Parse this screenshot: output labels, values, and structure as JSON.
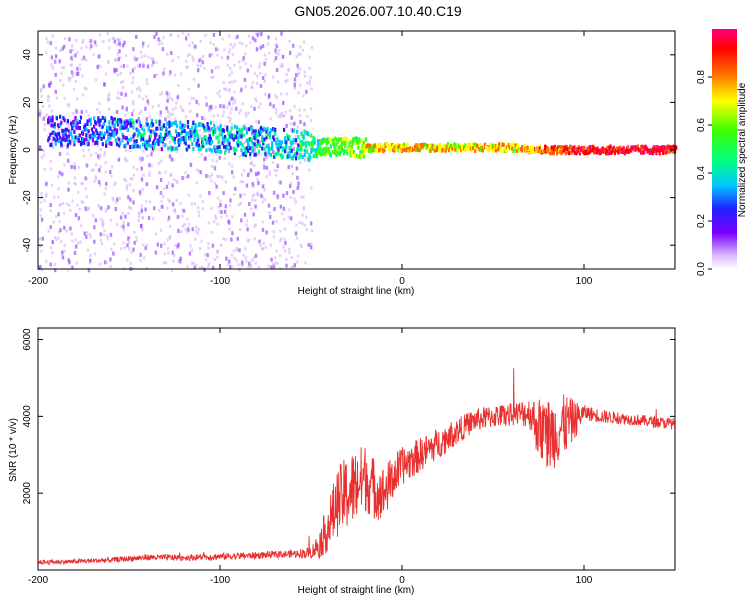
{
  "title": "GN05.2026.007.10.40.C19",
  "colors": {
    "snr_line": "#e8312f",
    "ridge_weak": "#7b00ff",
    "ridge_mid": "#00e0ff",
    "ridge_strong": "#ff1a1a",
    "scatter_light": "#c9a6f5"
  },
  "colorbar": {
    "label": "Normalized spectral amplitude",
    "ticks": [
      "0.0",
      "0.2",
      "0.4",
      "0.6",
      "0.8"
    ],
    "range": [
      0.0,
      1.0
    ],
    "colormap": "rainbow (purple → blue → cyan → green → yellow → red → magenta)"
  },
  "chart_data": [
    {
      "type": "heatmap",
      "xlabel": "Height of straight line (km)",
      "ylabel": "Frequency (Hz)",
      "xlim": [
        -200,
        150
      ],
      "ylim": [
        -50,
        50
      ],
      "xticks": [
        "-200",
        "-100",
        "0",
        "100"
      ],
      "yticks": [
        "-40",
        "-20",
        "0",
        "20",
        "40"
      ],
      "ridge": {
        "x": [
          -190,
          -170,
          -150,
          -130,
          -110,
          -90,
          -70,
          -55,
          -45,
          -35,
          -25,
          -15,
          0,
          20,
          40,
          60,
          80,
          90,
          100,
          120,
          150
        ],
        "frequency": [
          8,
          8,
          7,
          6,
          6,
          4,
          3,
          2,
          1,
          1,
          1,
          1,
          1,
          1,
          1,
          1,
          0,
          0,
          0,
          0,
          0
        ],
        "amplitude": [
          0.2,
          0.2,
          0.25,
          0.25,
          0.3,
          0.3,
          0.3,
          0.35,
          0.45,
          0.5,
          0.55,
          0.65,
          0.7,
          0.65,
          0.65,
          0.65,
          0.8,
          0.8,
          0.9,
          0.9,
          0.9
        ]
      },
      "scatter_band_x": [
        -200,
        -50
      ],
      "scatter_band_frequency": [
        -50,
        50
      ]
    },
    {
      "type": "line",
      "xlabel": "Height of straight line (km)",
      "ylabel": "SNR (10 * v/v)",
      "xlim": [
        -200,
        150
      ],
      "ylim": [
        0,
        6300
      ],
      "xticks": [
        "-200",
        "-100",
        "0",
        "100"
      ],
      "yticks": [
        "2000",
        "4000",
        "6000"
      ],
      "series": [
        {
          "x": [
            -200,
            -180,
            -160,
            -140,
            -120,
            -100,
            -80,
            -60,
            -50,
            -45,
            -40,
            -35,
            -30,
            -25,
            -20,
            -15,
            -10,
            -5,
            0,
            10,
            20,
            30,
            40,
            50,
            60,
            70,
            75,
            80,
            85,
            90,
            95,
            100,
            110,
            120,
            130,
            140,
            150
          ],
          "values": [
            200,
            220,
            260,
            330,
            320,
            350,
            380,
            420,
            450,
            700,
            1200,
            1800,
            2000,
            2200,
            2400,
            2100,
            2000,
            2400,
            2700,
            3000,
            3300,
            3600,
            3900,
            4000,
            4050,
            4100,
            3700,
            3500,
            3600,
            3800,
            3900,
            4100,
            4000,
            3950,
            3900,
            3850,
            3800
          ],
          "noise": [
            60,
            60,
            70,
            80,
            80,
            90,
            90,
            100,
            150,
            400,
            700,
            900,
            1000,
            1000,
            900,
            800,
            700,
            600,
            500,
            450,
            400,
            350,
            300,
            300,
            300,
            400,
            800,
            1000,
            900,
            800,
            500,
            200,
            180,
            150,
            150,
            150,
            150
          ]
        }
      ]
    }
  ]
}
